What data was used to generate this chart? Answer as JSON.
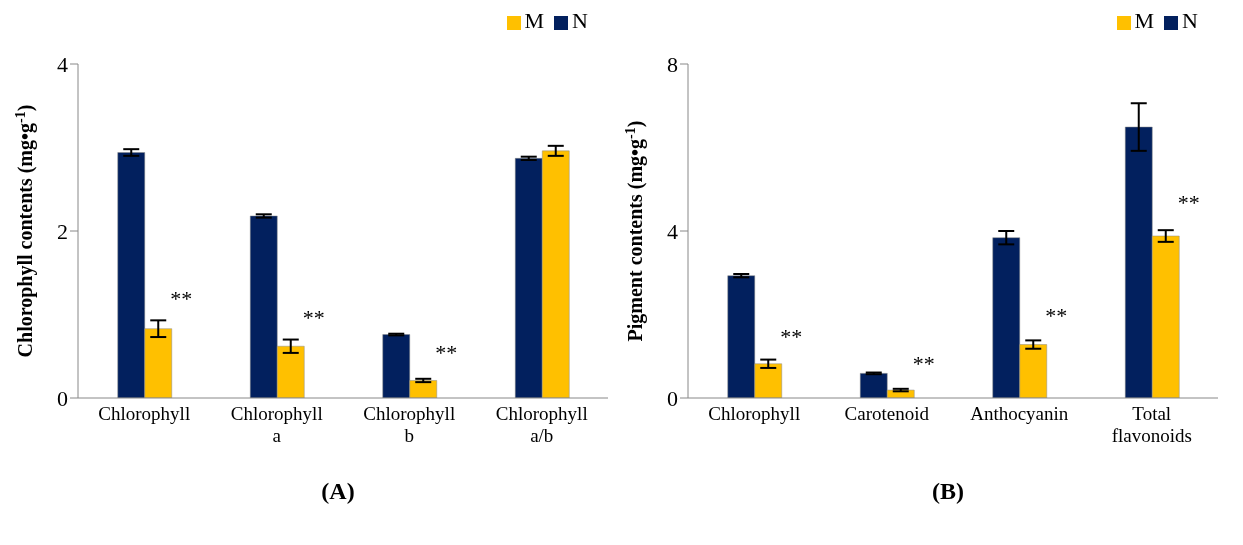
{
  "chart_data": [
    {
      "type": "bar",
      "categories": [
        "Chlorophyll",
        "Chlorophyll\na",
        "Chlorophyll\nb",
        "Chlorophyll\na/b"
      ],
      "ylabel": "Chlorophyll contents (mg•g$^{-1}$)",
      "ylim": [
        0,
        4
      ],
      "yticks": [
        0,
        2,
        4
      ],
      "legend": "top right",
      "grid": false,
      "series": [
        {
          "name": "N",
          "color": "#02205e",
          "values": [
            2.94,
            2.18,
            0.76,
            2.87
          ],
          "errors": [
            0.04,
            0.02,
            0.01,
            0.02
          ]
        },
        {
          "name": "M",
          "color": "#ffc000",
          "values": [
            0.83,
            0.62,
            0.21,
            2.96
          ],
          "errors": [
            0.1,
            0.08,
            0.02,
            0.06
          ]
        }
      ],
      "annotations": [
        {
          "text": "**",
          "x": "Chlorophyll",
          "y": 1.1
        },
        {
          "text": "**",
          "x": "Chlorophyll\na",
          "y": 0.88
        },
        {
          "text": "**",
          "x": "Chlorophyll\nb",
          "y": 0.45
        },
        "(A)"
      ]
    },
    {
      "type": "bar",
      "categories": [
        "Chlorophyll",
        "Carotenoid",
        "Anthocyanin",
        "Total\nflavonoids"
      ],
      "ylabel": "Pigment contents (mg•g$^{-1}$)",
      "ylim": [
        0,
        8
      ],
      "yticks": [
        0,
        4,
        8
      ],
      "legend": "top right",
      "grid": false,
      "series": [
        {
          "name": "N",
          "color": "#02205e",
          "values": [
            2.93,
            0.59,
            3.84,
            6.49
          ],
          "errors": [
            0.04,
            0.02,
            0.16,
            0.57
          ]
        },
        {
          "name": "M",
          "color": "#ffc000",
          "values": [
            0.82,
            0.19,
            1.28,
            3.88
          ],
          "errors": [
            0.1,
            0.03,
            0.1,
            0.14
          ]
        }
      ],
      "annotations": [
        {
          "text": "**",
          "x": "Chlorophyll",
          "y": 1.3
        },
        {
          "text": "**",
          "x": "Carotenoid",
          "y": 0.65
        },
        {
          "text": "**",
          "x": "Anthocyanin",
          "y": 1.8
        },
        {
          "text": "**",
          "x": "Total\nflavonoids",
          "y": 4.5
        },
        "(B)"
      ]
    }
  ]
}
